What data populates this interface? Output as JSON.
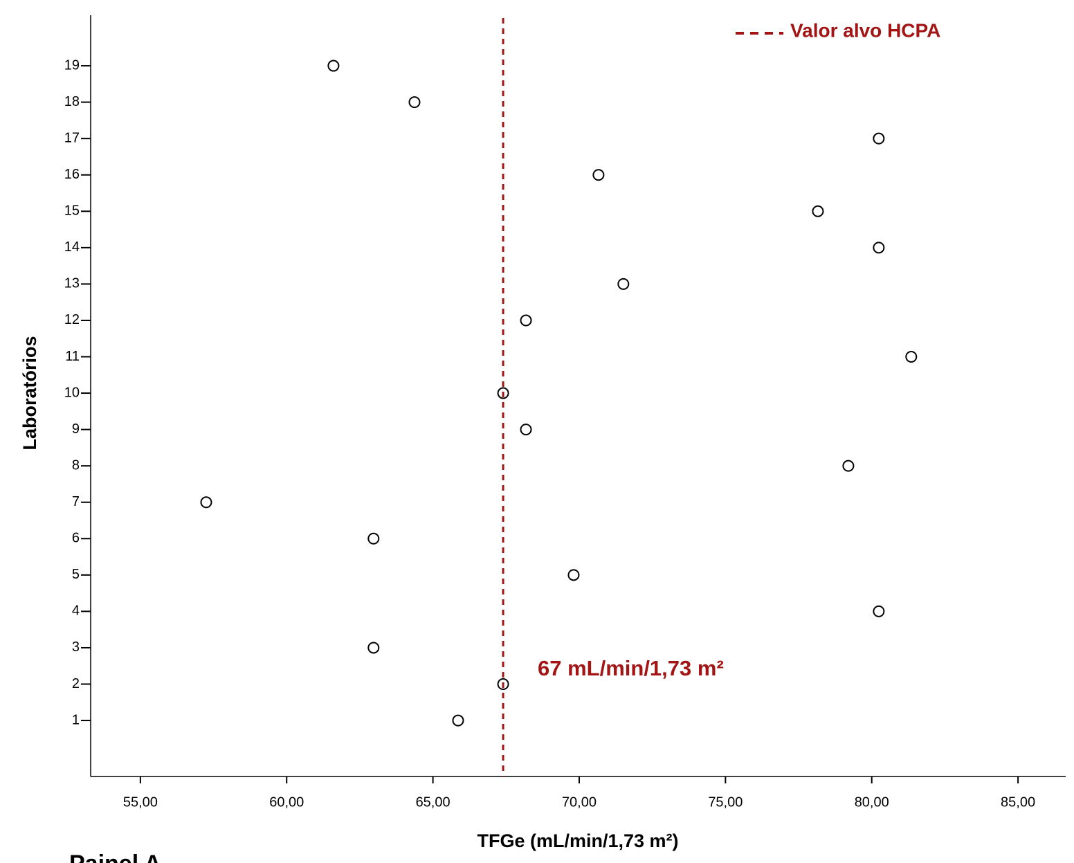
{
  "chart_data": {
    "type": "scatter",
    "x_label": "TFGe (mL/min/1,73 m²)",
    "y_label": "Laboratórios",
    "caption": "Painel A",
    "x": [
      65.86,
      67.4,
      62.97,
      80.24,
      69.81,
      62.97,
      57.25,
      79.2,
      68.18,
      67.4,
      81.35,
      68.18,
      71.51,
      80.24,
      78.16,
      70.66,
      80.24,
      64.37,
      61.6
    ],
    "y": [
      1,
      2,
      3,
      4,
      5,
      6,
      7,
      8,
      9,
      10,
      11,
      12,
      13,
      14,
      15,
      16,
      17,
      18,
      19
    ],
    "marker_color": "#000000",
    "xlim": [
      53.3,
      86.63
    ],
    "ylim": [
      -0.54,
      20.39
    ],
    "xticks": [
      {
        "value": 55,
        "label": "55,00"
      },
      {
        "value": 60,
        "label": "60,00"
      },
      {
        "value": 65,
        "label": "65,00"
      },
      {
        "value": 70,
        "label": "70,00"
      },
      {
        "value": 75,
        "label": "75,00"
      },
      {
        "value": 80,
        "label": "80,00"
      },
      {
        "value": 85,
        "label": "85,00"
      }
    ],
    "yticks": [
      1,
      2,
      3,
      4,
      5,
      6,
      7,
      8,
      9,
      10,
      11,
      12,
      13,
      14,
      15,
      16,
      17,
      18,
      19
    ],
    "reference_line": {
      "value": 67.4,
      "name": "Valor alvo HCPA",
      "label": "67 mL/min/1,73 m²",
      "color": "#a31515"
    },
    "legend": "upper right"
  }
}
